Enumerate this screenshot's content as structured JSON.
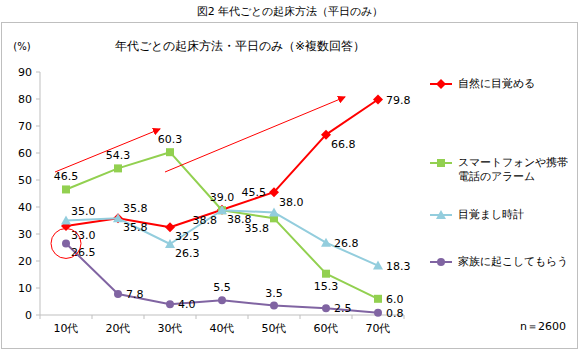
{
  "chart_data": {
    "type": "line",
    "title": "図2 年代ごとの起床方法（平日のみ）",
    "subtitle": "年代ごとの起床方法・平日のみ（※複数回答）",
    "y_label": "(%)",
    "annotations": [
      "n＝2600"
    ],
    "categories": [
      "10代",
      "20代",
      "30代",
      "40代",
      "50代",
      "60代",
      "70代"
    ],
    "series": [
      {
        "name": "自然に目覚める",
        "color": "#ff0000",
        "marker": "diamond",
        "values": [
          33.0,
          35.8,
          32.5,
          39.0,
          45.5,
          66.8,
          79.8
        ],
        "value_labels": [
          "33.0",
          "35.8",
          "32.5",
          "39.0",
          "45.5",
          "66.8",
          "79.8"
        ]
      },
      {
        "name": "スマートフォンや携帯電話のアラーム",
        "color": "#92d050",
        "marker": "square",
        "values": [
          46.5,
          54.3,
          60.3,
          38.8,
          35.8,
          15.3,
          6.0
        ],
        "value_labels": [
          "46.5",
          "54.3",
          "60.3",
          "38.8",
          "35.8",
          "15.3",
          "6.0"
        ]
      },
      {
        "name": "目覚まし時計",
        "color": "#93cddd",
        "marker": "triangle",
        "values": [
          35.0,
          35.8,
          26.3,
          38.8,
          38.0,
          26.8,
          18.3
        ],
        "value_labels": [
          "35.0",
          "35.8",
          "26.3",
          "38.8",
          "38.0",
          "26.8",
          "18.3"
        ]
      },
      {
        "name": "家族に起こしてもらう",
        "color": "#8064a2",
        "marker": "circle",
        "values": [
          26.5,
          7.8,
          4.0,
          5.5,
          3.5,
          2.5,
          0.8
        ],
        "value_labels": [
          "26.5",
          "7.8",
          "4.0",
          "5.5",
          "3.5",
          "2.5",
          "0.8"
        ]
      }
    ],
    "ylim": [
      0,
      90
    ],
    "yticks": [
      0,
      10,
      20,
      30,
      40,
      50,
      60,
      70,
      80,
      90
    ],
    "grid": false,
    "legend": "right",
    "data_labels": true
  }
}
